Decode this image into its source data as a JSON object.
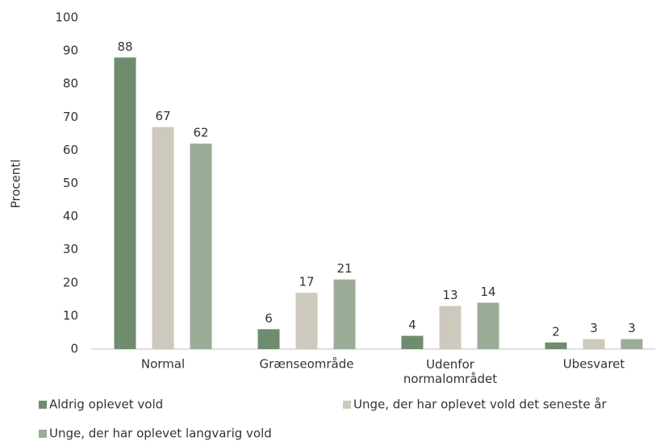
{
  "chart_data": {
    "type": "bar",
    "y_label": "Procentl",
    "categories": [
      "Normal",
      "Grænseområde",
      "Udenfor normalområdet",
      "Ubesvaret"
    ],
    "series": [
      {
        "name": "Aldrig oplevet vold",
        "color": "#6f8c6f",
        "values": [
          88,
          6,
          4,
          2
        ]
      },
      {
        "name": "Unge, der har oplevet vold det seneste år",
        "color": "#cec9bd",
        "values": [
          67,
          17,
          13,
          3
        ]
      },
      {
        "name": "Unge, der har oplevet langvarig vold",
        "color": "#9bac97",
        "values": [
          62,
          21,
          14,
          3
        ]
      }
    ],
    "ylim": [
      0,
      100
    ],
    "yticks": [
      0,
      10,
      20,
      30,
      40,
      50,
      60,
      70,
      80,
      90,
      100
    ],
    "grid": false,
    "legend": "bottom"
  }
}
